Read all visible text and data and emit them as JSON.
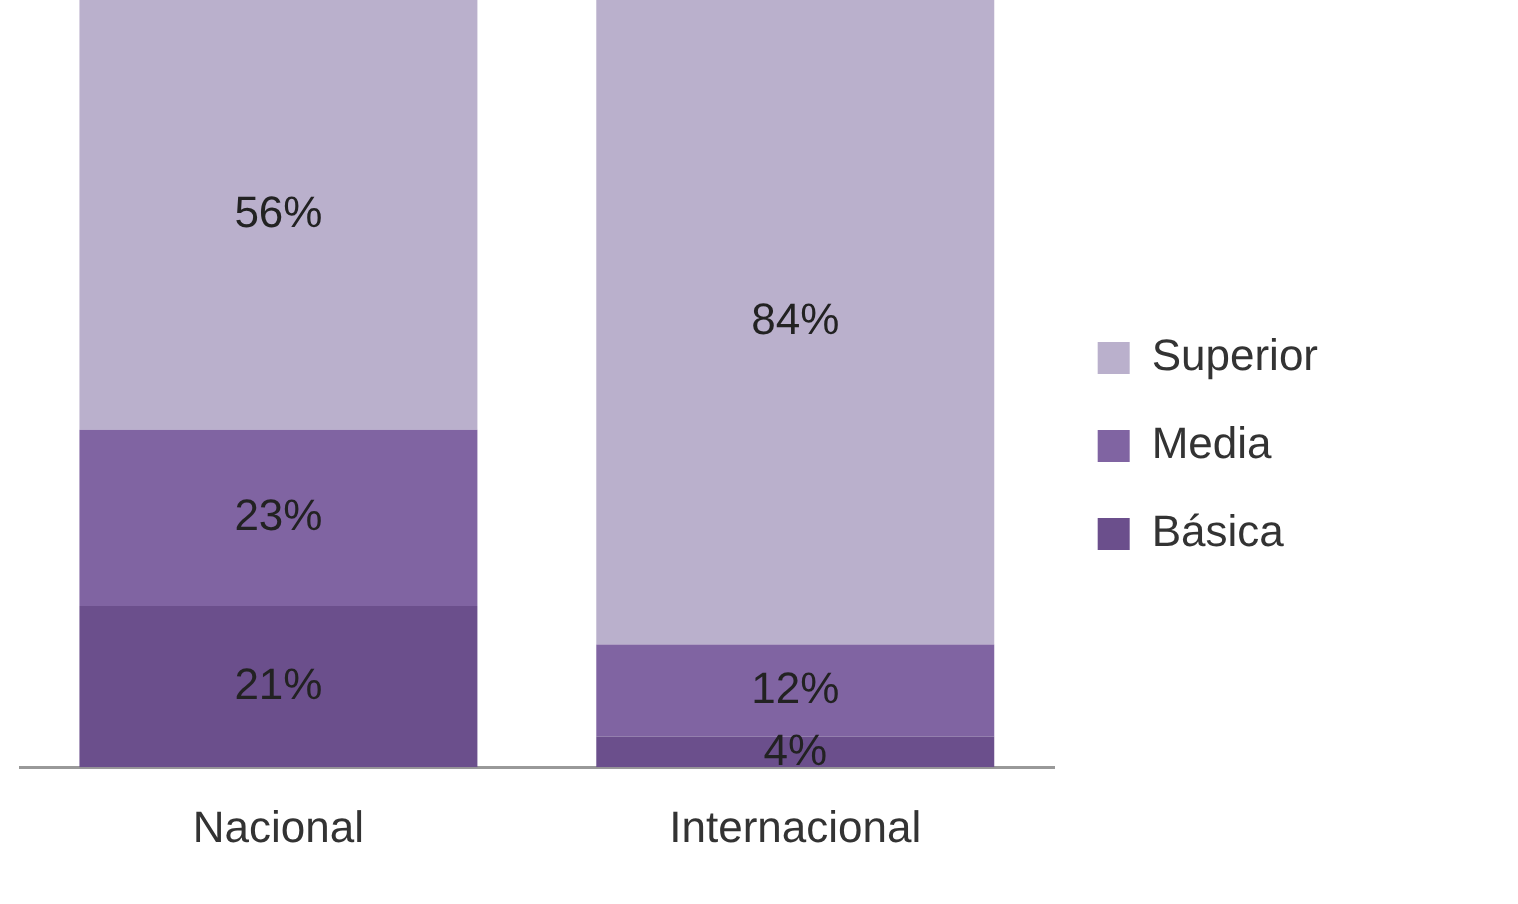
{
  "chart_data": {
    "type": "bar",
    "stacked": true,
    "categories": [
      "Nacional",
      "Internacional"
    ],
    "series": [
      {
        "name": "Básica",
        "color": "#6b4f8c",
        "values": [
          21,
          4
        ],
        "value_labels": [
          "21%",
          "4%"
        ]
      },
      {
        "name": "Media",
        "color": "#8064a2",
        "values": [
          23,
          12
        ],
        "value_labels": [
          "23%",
          "12%"
        ]
      },
      {
        "name": "Superior",
        "color": "#bab0cc",
        "values": [
          56,
          84
        ],
        "value_labels": [
          "56%",
          "84%"
        ]
      }
    ],
    "legend": "right",
    "grid": false
  }
}
